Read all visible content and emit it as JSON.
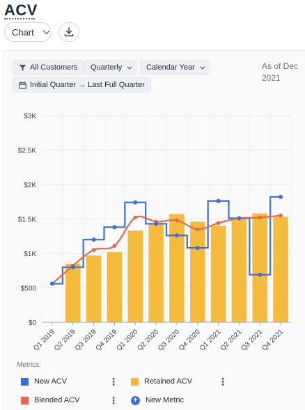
{
  "page": {
    "title": "ACV"
  },
  "toolbar": {
    "view_label": "Chart",
    "download_icon": "download-icon"
  },
  "filters": {
    "segment": "All Customers",
    "period": "Quarterly",
    "year_type": "Calendar Year",
    "range": "Initial Quarter → Last Full Quarter"
  },
  "as_of": {
    "line1": "As of Dec",
    "line2": "2021"
  },
  "chart_data": {
    "type": "bar",
    "categories": [
      "Q1 2019",
      "Q2 2019",
      "Q3 2019",
      "Q4 2019",
      "Q1 2020",
      "Q2 2020",
      "Q3 2020",
      "Q4 2020",
      "Q1 2021",
      "Q2 2021",
      "Q3 2021",
      "Q4 2021"
    ],
    "y_ticks": [
      "$0",
      "$500",
      "$1K",
      "$1.5K",
      "$2K",
      "$2.5K",
      "$3K"
    ],
    "ylim": [
      0,
      3000
    ],
    "grid": true,
    "series": [
      {
        "name": "Retained ACV",
        "type": "bar",
        "color": "#f4bb3c",
        "values": [
          null,
          850,
          970,
          1020,
          1330,
          1430,
          1570,
          1460,
          1400,
          1510,
          1580,
          1530
        ]
      },
      {
        "name": "New ACV",
        "type": "step-line",
        "color": "#3b6fe0",
        "values": [
          560,
          800,
          1200,
          1380,
          1740,
          1430,
          1260,
          1080,
          1760,
          1510,
          690,
          1820
        ]
      },
      {
        "name": "Blended ACV",
        "type": "smooth-line",
        "color": "#e8674a",
        "values": [
          560,
          820,
          1050,
          1110,
          1520,
          1460,
          1480,
          1350,
          1440,
          1510,
          1520,
          1550
        ]
      }
    ]
  },
  "metrics": {
    "label": "Metrics:",
    "items": [
      {
        "name": "New ACV",
        "color": "#3b6fe0"
      },
      {
        "name": "Retained ACV",
        "color": "#f4bb3c"
      },
      {
        "name": "Blended ACV",
        "color": "#e8674a"
      }
    ],
    "add_label": "New Metric",
    "menu_glyph": "⋮"
  }
}
